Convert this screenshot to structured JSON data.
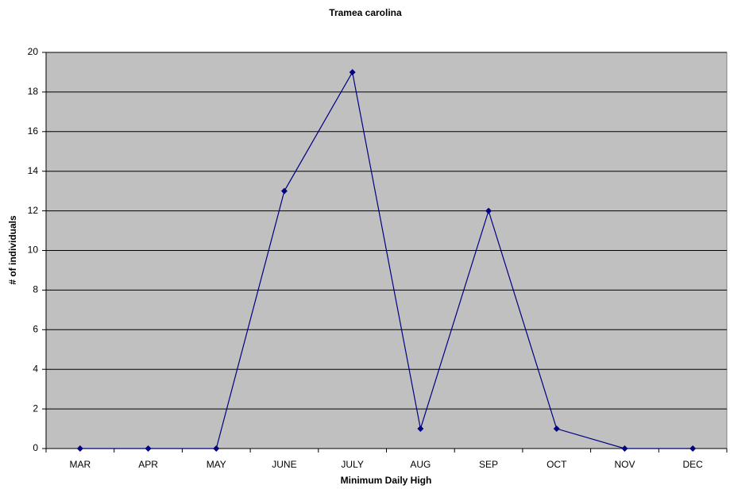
{
  "chart_data": {
    "type": "line",
    "title": "Tramea carolina",
    "x_label": "Minimum Daily High",
    "y_label": "# of individuals",
    "categories": [
      "MAR",
      "APR",
      "MAY",
      "JUNE",
      "JULY",
      "AUG",
      "SEP",
      "OCT",
      "NOV",
      "DEC"
    ],
    "series": [
      {
        "name": "Tramea carolina",
        "color": "#000080",
        "values": [
          0,
          0,
          0,
          13,
          19,
          1,
          12,
          1,
          0,
          0
        ]
      }
    ],
    "ylim": [
      0,
      20
    ],
    "yticks": [
      0,
      2,
      4,
      6,
      8,
      10,
      12,
      14,
      16,
      18,
      20
    ],
    "grid": true,
    "plot_background": "#c0c0c0"
  }
}
